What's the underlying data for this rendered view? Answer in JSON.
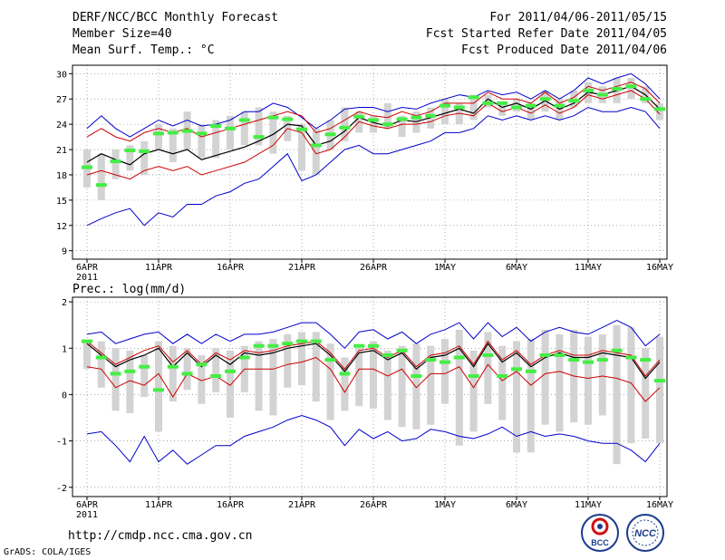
{
  "header": {
    "title": "DERF/NCC/BCC Monthly Forecast",
    "member_size": "Member Size=40",
    "var1_label": "Mean Surf. Temp.: °C",
    "period": "For 2011/04/06-2011/05/15",
    "refer_date": "Fcst Started Refer Date 2011/04/05",
    "produced_date": "Fcst Produced Date 2011/04/06"
  },
  "panel2_label": "Prec.: log(mm/d)",
  "footer": {
    "url": "http://cmdp.ncc.cma.gov.cn",
    "grads": "GrADS: COLA/IGES",
    "logo_bcc": "BCC",
    "logo_ncc": "NCC"
  },
  "colors": {
    "mean": "#000000",
    "member_band": "#cc0000",
    "envelope": "#0000cc",
    "box": "#d3d3d3",
    "median": "#44ee44"
  },
  "chart_data": [
    {
      "type": "line",
      "title": "Mean Surf. Temp.: °C",
      "ylim": [
        8,
        31
      ],
      "yticks": [
        9,
        12,
        15,
        18,
        21,
        24,
        27,
        30
      ],
      "xlim": [
        0,
        40
      ],
      "xtick_positions": [
        0,
        5,
        10,
        15,
        20,
        25,
        30,
        35,
        40
      ],
      "xtick_labels": [
        "6APR",
        "11APR",
        "16APR",
        "21APR",
        "26APR",
        "1MAY",
        "6MAY",
        "11MAY",
        "16MAY"
      ],
      "year_label": "2011",
      "series": [
        {
          "name": "mean",
          "values": [
            19.5,
            20.5,
            19.8,
            19.2,
            20.5,
            21.0,
            20.5,
            21.0,
            19.8,
            20.3,
            20.8,
            21.3,
            22.0,
            22.8,
            24.0,
            23.8,
            21.5,
            22.0,
            23.2,
            24.8,
            24.2,
            23.8,
            24.5,
            24.3,
            24.8,
            25.3,
            25.8,
            25.3,
            27.0,
            26.0,
            26.5,
            25.8,
            26.8,
            25.8,
            26.5,
            27.8,
            27.5,
            28.0,
            28.5,
            27.5,
            25.8
          ]
        },
        {
          "name": "band_upper",
          "values": [
            22.5,
            23.5,
            22.5,
            22.0,
            23.0,
            23.5,
            23.0,
            23.5,
            22.5,
            23.0,
            23.5,
            24.0,
            24.5,
            25.0,
            25.5,
            25.0,
            23.0,
            23.5,
            24.5,
            25.5,
            25.0,
            24.8,
            25.5,
            25.0,
            25.5,
            26.5,
            26.5,
            26.5,
            27.8,
            27.0,
            27.0,
            26.5,
            27.8,
            26.5,
            27.2,
            28.5,
            28.0,
            28.5,
            29.0,
            28.2,
            26.5
          ]
        },
        {
          "name": "band_lower",
          "values": [
            18.0,
            18.5,
            18.0,
            17.5,
            18.5,
            19.0,
            18.5,
            19.0,
            18.0,
            18.5,
            19.0,
            19.5,
            20.5,
            21.5,
            23.5,
            23.0,
            20.5,
            21.0,
            22.5,
            24.3,
            23.8,
            23.5,
            24.0,
            24.0,
            24.3,
            25.0,
            25.3,
            25.0,
            26.5,
            25.5,
            26.0,
            25.3,
            26.3,
            25.3,
            26.0,
            27.5,
            27.0,
            27.5,
            28.0,
            27.0,
            25.2
          ]
        },
        {
          "name": "envelope_max",
          "values": [
            23.5,
            25.0,
            23.5,
            22.5,
            23.5,
            24.5,
            23.8,
            24.5,
            23.8,
            24.0,
            24.5,
            25.5,
            25.5,
            26.5,
            26.0,
            24.8,
            23.5,
            24.5,
            25.8,
            26.0,
            26.0,
            25.5,
            26.0,
            25.8,
            26.5,
            27.0,
            27.5,
            27.2,
            28.0,
            27.5,
            27.8,
            27.0,
            28.0,
            27.0,
            28.0,
            29.5,
            28.8,
            29.5,
            30.0,
            28.8,
            27.0
          ]
        },
        {
          "name": "envelope_min",
          "values": [
            12.0,
            12.8,
            13.5,
            14.0,
            12.0,
            13.5,
            13.0,
            14.5,
            14.5,
            15.5,
            16.0,
            17.0,
            17.5,
            19.0,
            20.5,
            17.3,
            18.0,
            19.5,
            21.0,
            21.5,
            20.5,
            20.5,
            21.0,
            21.5,
            22.0,
            23.0,
            23.0,
            23.5,
            25.0,
            24.5,
            25.0,
            24.5,
            25.0,
            24.5,
            25.0,
            26.0,
            25.5,
            25.5,
            26.0,
            25.5,
            23.5
          ]
        },
        {
          "name": "box_top",
          "values": [
            21.0,
            20.5,
            21.0,
            21.5,
            22.0,
            24.0,
            23.5,
            25.5,
            24.0,
            24.5,
            25.0,
            25.5,
            26.0,
            25.5,
            25.0,
            24.0,
            23.5,
            24.5,
            26.0,
            25.5,
            25.0,
            26.5,
            25.0,
            25.5,
            26.0,
            27.0,
            26.5,
            27.5,
            27.5,
            26.5,
            27.0,
            26.5,
            28.0,
            27.0,
            28.0,
            29.0,
            28.5,
            29.5,
            29.5,
            28.5,
            26.5
          ]
        },
        {
          "name": "box_bottom",
          "values": [
            16.5,
            15.0,
            17.5,
            18.5,
            18.0,
            21.0,
            19.5,
            21.0,
            20.0,
            20.0,
            21.0,
            21.5,
            21.5,
            20.5,
            22.0,
            18.5,
            18.0,
            21.0,
            22.0,
            23.0,
            23.0,
            23.5,
            22.5,
            23.0,
            23.5,
            24.0,
            24.0,
            24.5,
            26.0,
            25.0,
            25.5,
            24.5,
            25.5,
            24.5,
            26.0,
            26.5,
            26.5,
            26.5,
            27.0,
            26.5,
            24.5
          ]
        },
        {
          "name": "median",
          "values": [
            18.9,
            16.8,
            19.6,
            20.9,
            20.8,
            22.9,
            23.0,
            23.2,
            22.9,
            23.8,
            23.5,
            24.5,
            22.5,
            24.8,
            24.6,
            23.4,
            21.5,
            22.8,
            23.6,
            24.9,
            24.5,
            24.0,
            24.6,
            24.8,
            25.0,
            26.2,
            26.0,
            27.2,
            26.5,
            26.5,
            26.0,
            26.2,
            27.0,
            26.2,
            26.8,
            28.0,
            27.5,
            28.2,
            28.5,
            27.0,
            25.8
          ]
        }
      ]
    },
    {
      "type": "line",
      "title": "Prec.: log(mm/d)",
      "ylim": [
        -2.2,
        2.1
      ],
      "yticks": [
        -2,
        -1,
        0,
        1,
        2
      ],
      "xlim": [
        0,
        40
      ],
      "xtick_positions": [
        0,
        5,
        10,
        15,
        20,
        25,
        30,
        35,
        40
      ],
      "xtick_labels": [
        "6APR",
        "11APR",
        "16APR",
        "21APR",
        "26APR",
        "1MAY",
        "6MAY",
        "11MAY",
        "16MAY"
      ],
      "year_label": "2011",
      "series": [
        {
          "name": "mean",
          "values": [
            1.1,
            0.85,
            0.6,
            0.75,
            0.85,
            1.0,
            0.6,
            0.9,
            0.6,
            0.85,
            0.65,
            0.9,
            0.85,
            0.9,
            1.0,
            1.05,
            1.1,
            0.85,
            0.5,
            0.9,
            0.95,
            0.75,
            0.9,
            0.55,
            0.8,
            0.85,
            1.0,
            0.6,
            1.1,
            0.7,
            0.9,
            0.6,
            0.8,
            0.9,
            0.8,
            0.8,
            0.9,
            0.85,
            0.8,
            0.35,
            0.7
          ]
        },
        {
          "name": "band_upper",
          "values": [
            1.15,
            0.9,
            0.65,
            0.8,
            0.95,
            1.05,
            0.7,
            0.95,
            0.65,
            0.9,
            0.75,
            0.95,
            0.9,
            0.95,
            1.05,
            1.1,
            1.15,
            0.9,
            0.55,
            0.95,
            1.0,
            0.8,
            0.95,
            0.6,
            0.85,
            0.9,
            1.05,
            0.65,
            1.15,
            0.75,
            0.95,
            0.65,
            0.85,
            0.95,
            0.85,
            0.85,
            0.95,
            0.9,
            0.85,
            0.4,
            0.75
          ]
        },
        {
          "name": "band_lower",
          "values": [
            0.6,
            0.55,
            0.15,
            0.3,
            0.2,
            0.45,
            -0.05,
            0.45,
            0.3,
            0.4,
            0.2,
            0.55,
            0.55,
            0.55,
            0.65,
            0.7,
            0.8,
            0.55,
            0.05,
            0.55,
            0.55,
            0.4,
            0.55,
            0.15,
            0.45,
            0.45,
            0.6,
            0.15,
            0.65,
            0.3,
            0.5,
            0.2,
            0.45,
            0.5,
            0.4,
            0.35,
            0.4,
            0.35,
            0.25,
            -0.15,
            0.15
          ]
        },
        {
          "name": "envelope_max",
          "values": [
            1.3,
            1.35,
            1.1,
            1.2,
            1.3,
            1.35,
            1.1,
            1.3,
            1.1,
            1.3,
            1.15,
            1.3,
            1.3,
            1.35,
            1.45,
            1.55,
            1.55,
            1.3,
            1.0,
            1.35,
            1.4,
            1.2,
            1.35,
            1.1,
            1.3,
            1.4,
            1.55,
            1.2,
            1.55,
            1.25,
            1.45,
            1.15,
            1.35,
            1.45,
            1.35,
            1.3,
            1.45,
            1.6,
            1.45,
            1.05,
            1.3
          ]
        },
        {
          "name": "envelope_min",
          "values": [
            -0.85,
            -0.8,
            -1.1,
            -1.45,
            -0.9,
            -1.45,
            -1.2,
            -1.5,
            -1.3,
            -1.1,
            -1.1,
            -0.9,
            -0.8,
            -0.7,
            -0.55,
            -0.45,
            -0.55,
            -0.7,
            -1.1,
            -0.75,
            -0.95,
            -0.8,
            -1.0,
            -0.95,
            -0.75,
            -0.8,
            -0.9,
            -0.95,
            -0.85,
            -0.7,
            -0.9,
            -0.8,
            -0.9,
            -0.85,
            -0.9,
            -1.0,
            -1.05,
            -1.05,
            -1.2,
            -1.45,
            -1.05
          ]
        },
        {
          "name": "box_top",
          "values": [
            1.15,
            1.15,
            1.0,
            0.95,
            0.85,
            1.15,
            1.05,
            1.0,
            0.85,
            1.0,
            0.95,
            1.05,
            1.15,
            1.2,
            1.3,
            1.35,
            1.35,
            1.1,
            0.8,
            1.0,
            1.15,
            0.95,
            1.05,
            1.1,
            1.05,
            1.2,
            1.4,
            0.95,
            1.35,
            1.05,
            1.15,
            1.2,
            1.4,
            1.3,
            1.4,
            1.25,
            1.3,
            1.5,
            1.45,
            1.0,
            1.25
          ]
        },
        {
          "name": "box_bottom",
          "values": [
            0.55,
            0.15,
            -0.35,
            -0.4,
            -0.05,
            -0.8,
            -0.15,
            0.1,
            -0.2,
            0.05,
            -0.5,
            0.05,
            -0.35,
            -0.45,
            0.15,
            0.2,
            -0.15,
            -0.55,
            -0.35,
            -0.25,
            -0.3,
            -0.55,
            -0.7,
            -0.75,
            -0.65,
            -0.2,
            -1.1,
            -0.8,
            -0.2,
            -0.55,
            -1.25,
            -1.25,
            -0.65,
            -0.8,
            -0.6,
            -0.65,
            -0.45,
            -1.5,
            -1.05,
            -0.95,
            -1.05
          ]
        },
        {
          "name": "median",
          "values": [
            1.15,
            0.8,
            0.45,
            0.5,
            0.6,
            0.1,
            0.6,
            0.45,
            0.65,
            0.4,
            0.5,
            0.8,
            1.05,
            1.05,
            1.1,
            1.15,
            1.15,
            0.75,
            0.45,
            1.05,
            1.05,
            0.85,
            0.95,
            0.4,
            0.75,
            0.7,
            0.8,
            0.4,
            0.85,
            0.4,
            0.55,
            0.5,
            0.85,
            0.85,
            0.75,
            0.7,
            0.75,
            0.95,
            0.8,
            0.75,
            0.3
          ]
        }
      ]
    }
  ]
}
